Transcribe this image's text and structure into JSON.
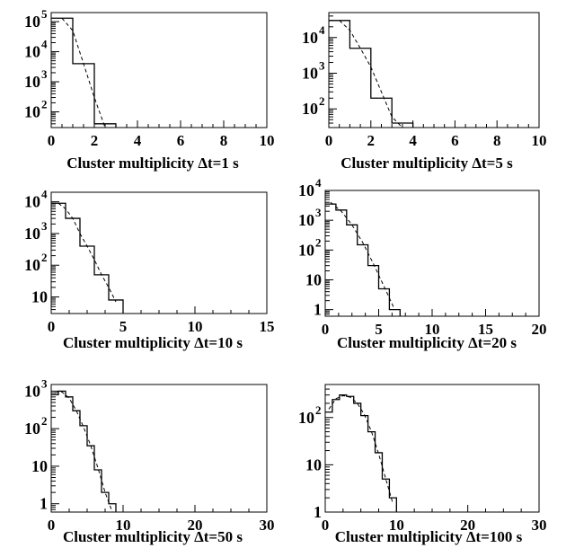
{
  "chart_data": [
    {
      "type": "histogram",
      "xlabel": "Cluster multiplicity Δt=1  s",
      "xlim": [
        0,
        10
      ],
      "xticks": [
        0,
        2,
        4,
        6,
        8,
        10
      ],
      "log_y": true,
      "ylim": [
        30,
        200000
      ],
      "yticks": [
        {
          "v": 100,
          "label": "10",
          "exp": "2"
        },
        {
          "v": 1000,
          "label": "10",
          "exp": "3"
        },
        {
          "v": 10000,
          "label": "10",
          "exp": "4"
        },
        {
          "v": 100000,
          "label": "10",
          "exp": "5"
        }
      ],
      "series": [
        {
          "style": "histogram",
          "edges": [
            0,
            1,
            2,
            3
          ],
          "values": [
            130000,
            4000,
            40
          ]
        },
        {
          "style": "dashed",
          "points": [
            [
              0.5,
              130000
            ],
            [
              1.0,
              50000
            ],
            [
              1.5,
              4000
            ],
            [
              2.0,
              300
            ],
            [
              2.5,
              25
            ]
          ]
        }
      ]
    },
    {
      "type": "histogram",
      "xlabel": "Cluster multiplicity Δt=5 s",
      "xlim": [
        0,
        10
      ],
      "xticks": [
        0,
        2,
        4,
        6,
        8,
        10
      ],
      "log_y": true,
      "ylim": [
        30,
        50000
      ],
      "yticks": [
        {
          "v": 100,
          "label": "10",
          "exp": "2"
        },
        {
          "v": 1000,
          "label": "10",
          "exp": "3"
        },
        {
          "v": 10000,
          "label": "10",
          "exp": "4"
        }
      ],
      "series": [
        {
          "style": "histogram",
          "edges": [
            0,
            1,
            2,
            3,
            4
          ],
          "values": [
            30000,
            5000,
            200,
            40
          ]
        },
        {
          "style": "dashed",
          "points": [
            [
              0.5,
              30000
            ],
            [
              1.0,
              16000
            ],
            [
              1.5,
              5000
            ],
            [
              2.0,
              1500
            ],
            [
              2.5,
              300
            ],
            [
              3.0,
              60
            ],
            [
              3.5,
              25
            ]
          ]
        }
      ]
    },
    {
      "type": "histogram",
      "xlabel": "Cluster multiplicity Δt=10 s",
      "xlim": [
        0,
        15
      ],
      "xticks": [
        0,
        5,
        10,
        15
      ],
      "log_y": true,
      "ylim": [
        3,
        20000
      ],
      "yticks": [
        {
          "v": 10,
          "label": "10",
          "exp": ""
        },
        {
          "v": 100,
          "label": "10",
          "exp": "2"
        },
        {
          "v": 1000,
          "label": "10",
          "exp": "3"
        },
        {
          "v": 10000,
          "label": "10",
          "exp": "4"
        }
      ],
      "series": [
        {
          "style": "histogram",
          "edges": [
            0,
            1,
            2,
            3,
            4,
            5
          ],
          "values": [
            9000,
            3000,
            400,
            50,
            8
          ]
        },
        {
          "style": "dashed",
          "points": [
            [
              0.5,
              9000
            ],
            [
              1.0,
              6000
            ],
            [
              1.5,
              3000
            ],
            [
              2.0,
              1000
            ],
            [
              2.5,
              400
            ],
            [
              3.0,
              150
            ],
            [
              3.5,
              50
            ],
            [
              4.0,
              20
            ],
            [
              4.5,
              7
            ]
          ]
        }
      ]
    },
    {
      "type": "histogram",
      "xlabel": "Cluster multiplicity Δt=20 s",
      "xlim": [
        0,
        20
      ],
      "xticks": [
        0,
        5,
        10,
        15,
        20
      ],
      "log_y": true,
      "ylim": [
        0.6,
        10000
      ],
      "yticks": [
        {
          "v": 1,
          "label": "1",
          "exp": ""
        },
        {
          "v": 10,
          "label": "10",
          "exp": ""
        },
        {
          "v": 100,
          "label": "10",
          "exp": "2"
        },
        {
          "v": 1000,
          "label": "10",
          "exp": "3"
        },
        {
          "v": 10000,
          "label": "10",
          "exp": "4"
        }
      ],
      "series": [
        {
          "style": "histogram",
          "edges": [
            0,
            1,
            2,
            3,
            4,
            5,
            6,
            7
          ],
          "values": [
            3500,
            2200,
            700,
            150,
            30,
            5,
            1
          ]
        },
        {
          "style": "dashed",
          "points": [
            [
              0.5,
              4000
            ],
            [
              1.5,
              2000
            ],
            [
              2.5,
              700
            ],
            [
              3.5,
              180
            ],
            [
              4.5,
              35
            ],
            [
              5.5,
              6
            ],
            [
              6.5,
              1
            ]
          ]
        }
      ]
    },
    {
      "type": "histogram",
      "xlabel": "Cluster multiplicity Δt=50 s",
      "xlim": [
        0,
        30
      ],
      "xticks": [
        0,
        10,
        20,
        30
      ],
      "log_y": true,
      "ylim": [
        0.6,
        1500
      ],
      "yticks": [
        {
          "v": 1,
          "label": "1",
          "exp": ""
        },
        {
          "v": 10,
          "label": "10",
          "exp": ""
        },
        {
          "v": 100,
          "label": "10",
          "exp": "2"
        },
        {
          "v": 1000,
          "label": "10",
          "exp": "3"
        }
      ],
      "series": [
        {
          "style": "histogram",
          "edges": [
            0,
            1,
            2,
            3,
            4,
            5,
            6,
            7,
            8,
            9
          ],
          "values": [
            800,
            1000,
            700,
            300,
            120,
            35,
            8,
            2,
            1
          ]
        },
        {
          "style": "dashed",
          "points": [
            [
              0.5,
              900
            ],
            [
              1.5,
              950
            ],
            [
              2.5,
              650
            ],
            [
              3.5,
              300
            ],
            [
              4.5,
              110
            ],
            [
              5.5,
              35
            ],
            [
              6.5,
              9
            ],
            [
              7.5,
              2
            ],
            [
              8.5,
              0.6
            ]
          ]
        }
      ]
    },
    {
      "type": "histogram",
      "xlabel": "Cluster multiplicity Δt=100 s",
      "xlim": [
        0,
        30
      ],
      "xticks": [
        0,
        10,
        20,
        30
      ],
      "log_y": true,
      "ylim": [
        1,
        500
      ],
      "yticks": [
        {
          "v": 1,
          "label": "1",
          "exp": ""
        },
        {
          "v": 10,
          "label": "10",
          "exp": ""
        },
        {
          "v": 100,
          "label": "10",
          "exp": "2"
        }
      ],
      "series": [
        {
          "style": "histogram",
          "edges": [
            0,
            1,
            2,
            3,
            4,
            5,
            6,
            7,
            8,
            9,
            10
          ],
          "values": [
            130,
            240,
            300,
            280,
            200,
            110,
            50,
            18,
            5,
            2
          ]
        },
        {
          "style": "dashed",
          "points": [
            [
              0.5,
              150
            ],
            [
              1.5,
              250
            ],
            [
              2.5,
              290
            ],
            [
              3.5,
              270
            ],
            [
              4.5,
              200
            ],
            [
              5.5,
              115
            ],
            [
              6.5,
              50
            ],
            [
              7.5,
              17
            ],
            [
              8.5,
              5
            ],
            [
              9.5,
              1.5
            ]
          ]
        }
      ]
    }
  ]
}
